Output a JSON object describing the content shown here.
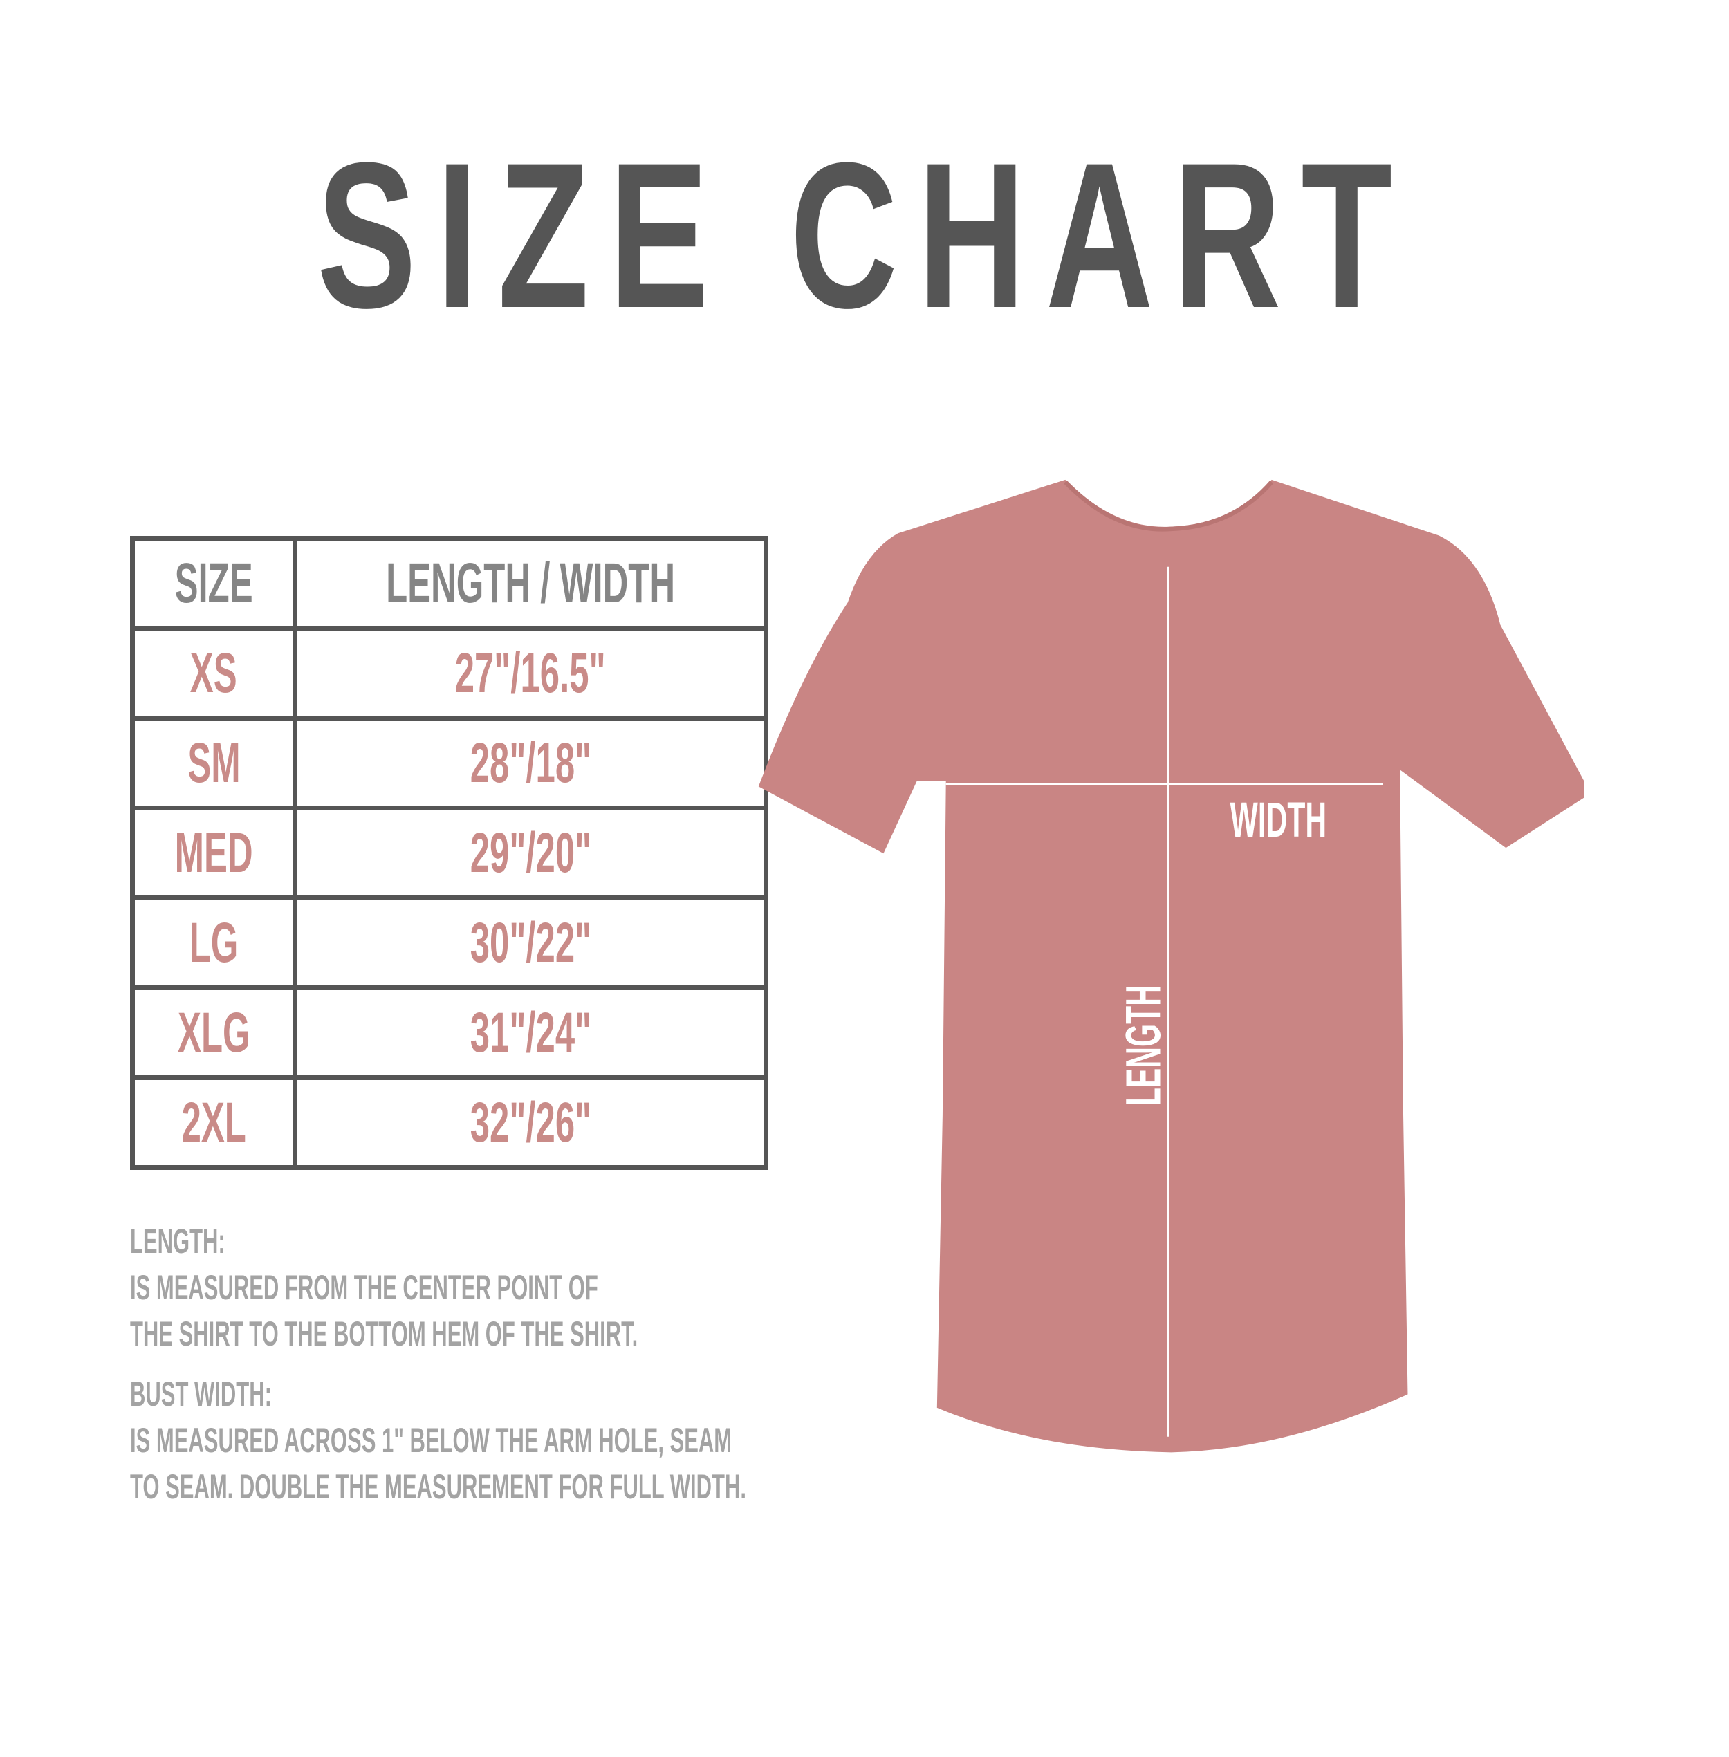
{
  "title": "SIZE CHART",
  "table": {
    "headers": [
      "SIZE",
      "LENGTH / WIDTH"
    ],
    "rows": [
      {
        "size": "XS",
        "measure": "27\"/16.5\""
      },
      {
        "size": "SM",
        "measure": "28\"/18\""
      },
      {
        "size": "MED",
        "measure": "29\"/20\""
      },
      {
        "size": "LG",
        "measure": "30\"/22\""
      },
      {
        "size": "XLG",
        "measure": "31\"/24\""
      },
      {
        "size": "2XL",
        "measure": "32\"/26\""
      }
    ]
  },
  "notes": {
    "length_label": "LENGTH:",
    "length_line1": "IS MEASURED FROM THE CENTER POINT OF",
    "length_line2": "THE SHIRT TO THE BOTTOM HEM OF THE SHIRT.",
    "width_label": "BUST WIDTH:",
    "width_line1": "IS MEASURED ACROSS  1\" BELOW THE ARM HOLE, SEAM",
    "width_line2": "TO SEAM. DOUBLE THE MEASUREMENT FOR FULL WIDTH."
  },
  "shirt": {
    "width_label": "WIDTH",
    "length_label": "LENGTH",
    "color": "#c98584"
  },
  "colors": {
    "title": "#555555",
    "header": "#858585",
    "values": "#c98b88",
    "notes": "#a3a3a3"
  }
}
